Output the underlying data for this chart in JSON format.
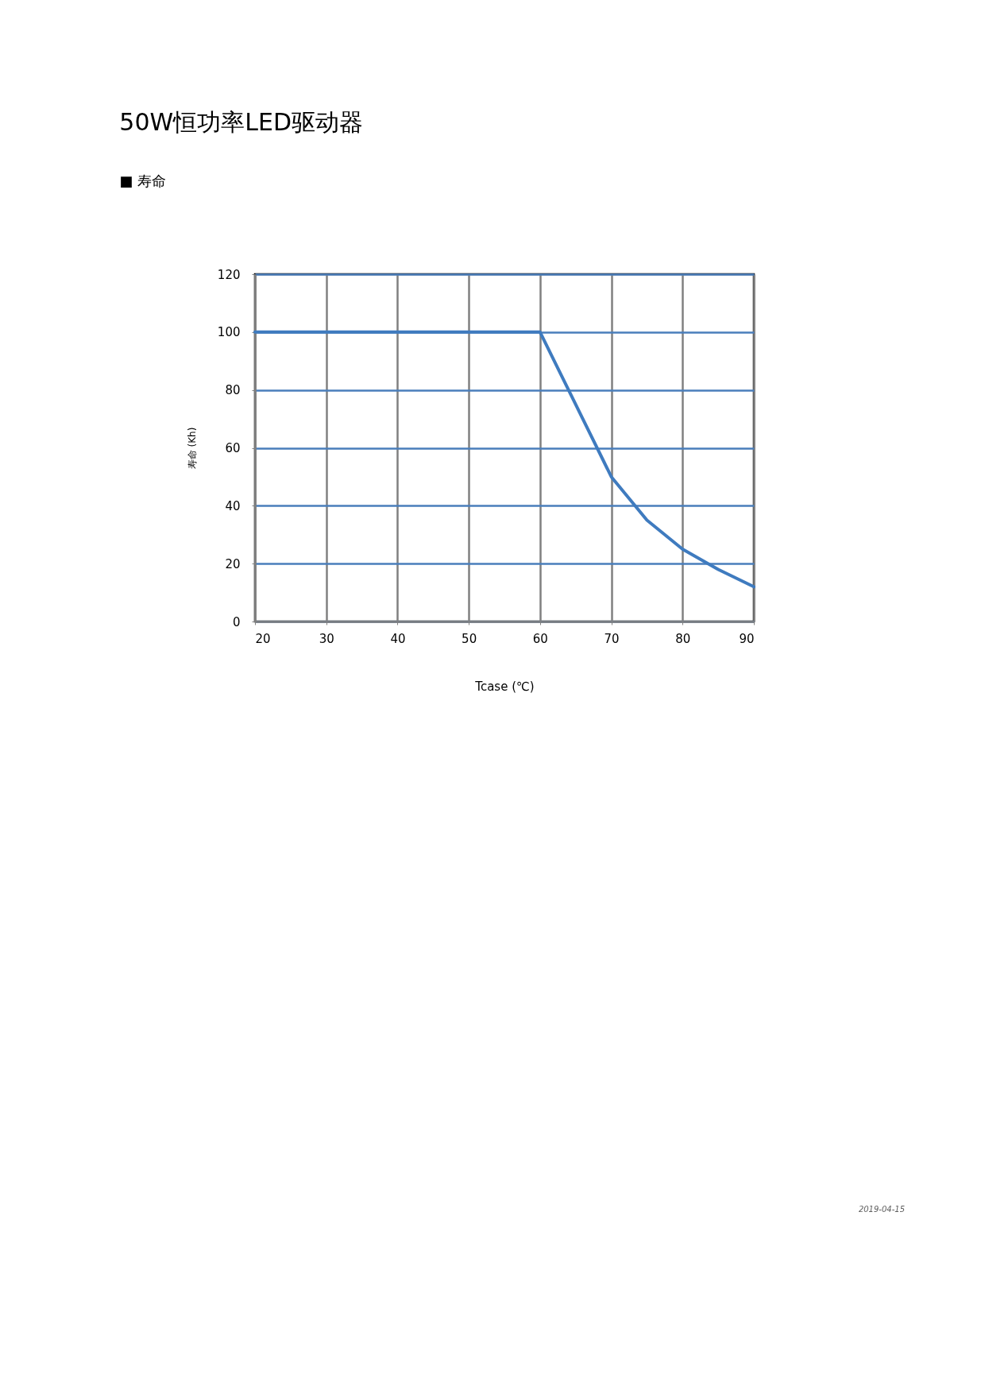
{
  "chart_data": {
    "type": "line",
    "title": "50W恒功率LED驱动器",
    "subtitle": "■ 寿命",
    "xlabel": "Tcase (℃)",
    "ylabel": "寿命 (Kh)",
    "x": [
      20,
      60,
      70,
      75,
      80,
      85,
      90
    ],
    "series": [
      {
        "color": "#3f7bbf",
        "values": [
          100,
          100,
          50,
          35,
          25,
          18,
          12
        ]
      }
    ],
    "xlim": [
      20,
      90
    ],
    "xticks": [
      20,
      30,
      40,
      50,
      60,
      70,
      80,
      90
    ],
    "ylim": [
      0,
      120
    ],
    "yticks": [
      0,
      20,
      40,
      60,
      80,
      100,
      120
    ],
    "grid": true,
    "legend": false,
    "marker": "none",
    "line_style": "solid",
    "annotations": [
      "2019-04-15"
    ]
  }
}
